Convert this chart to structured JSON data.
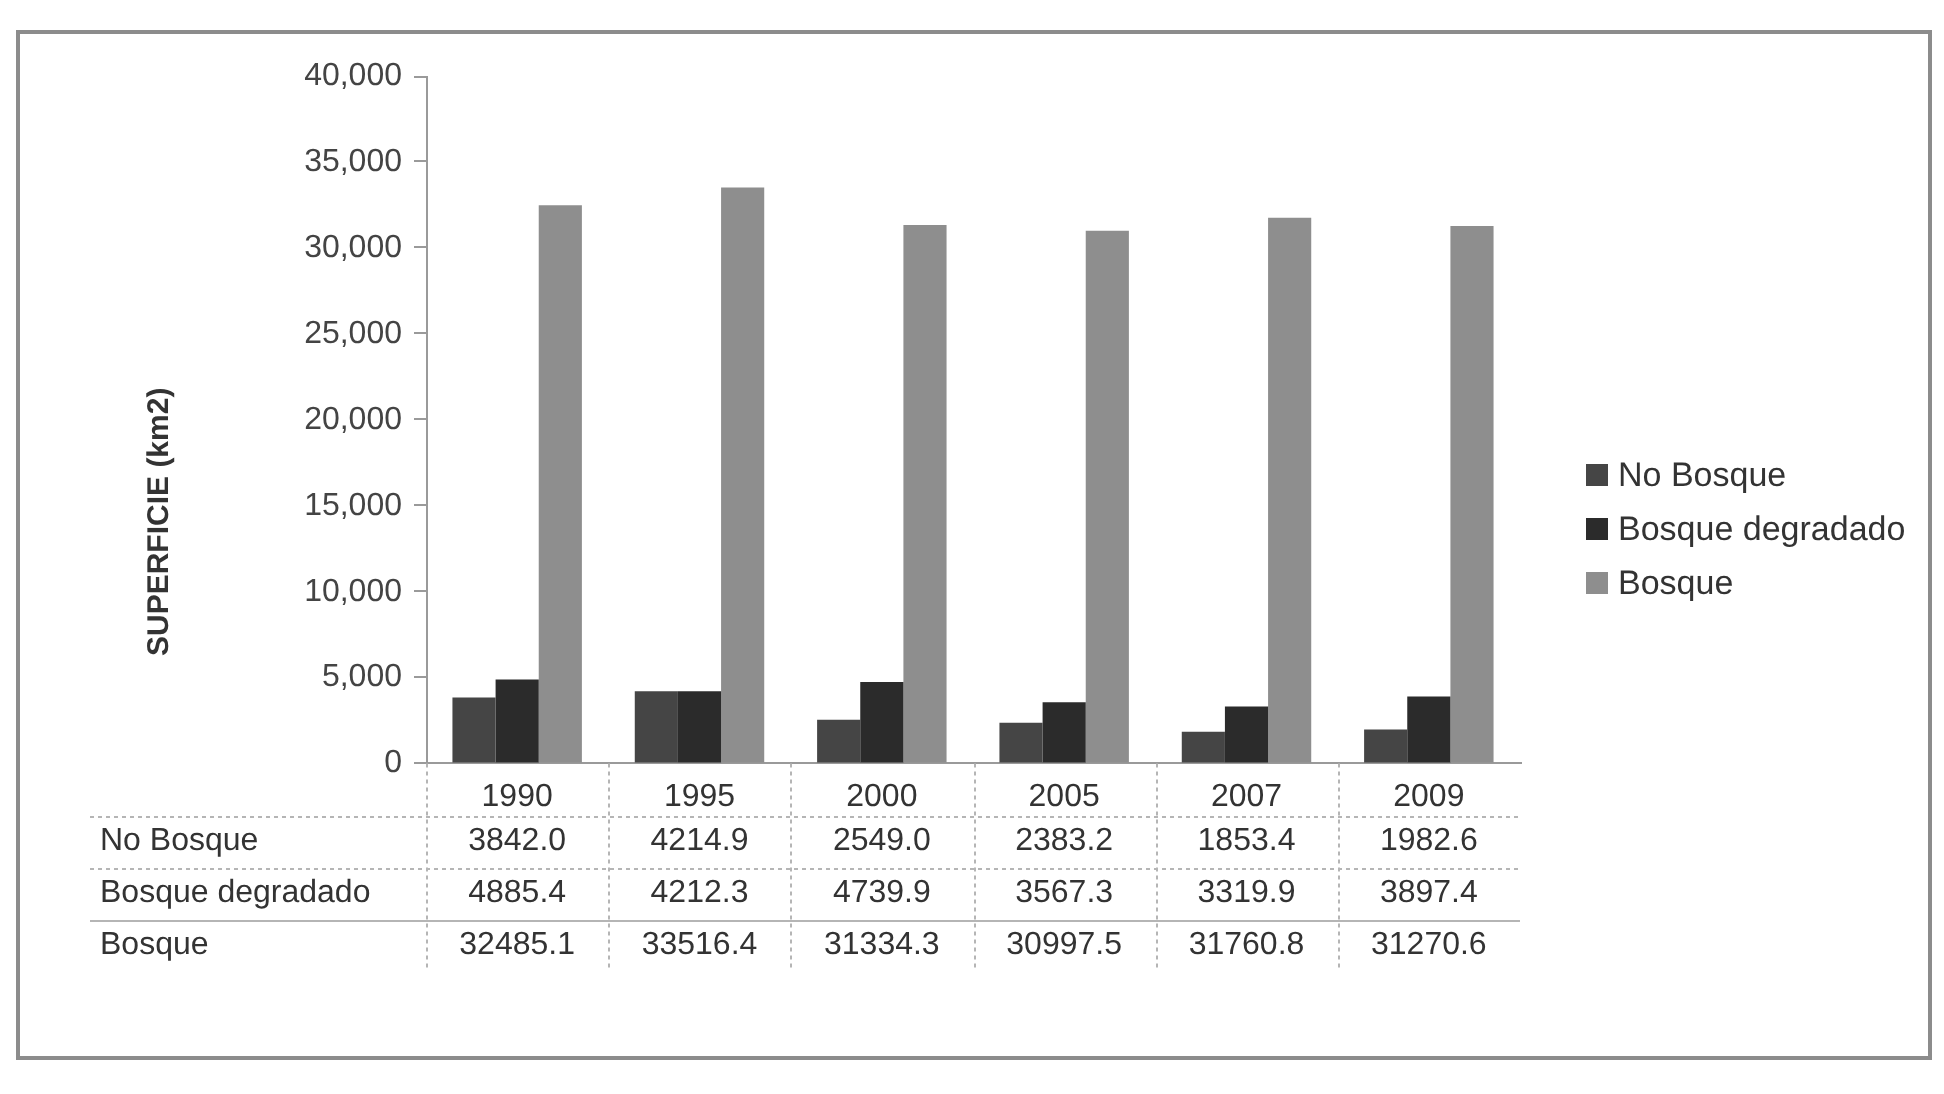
{
  "chart_data": {
    "type": "bar",
    "ylabel": "SUPERFICIE (km2)",
    "categories": [
      "1990",
      "1995",
      "2000",
      "2005",
      "2007",
      "2009"
    ],
    "series": [
      {
        "name": "No Bosque",
        "color": "#454545",
        "values": [
          3842.0,
          4214.9,
          2549.0,
          2383.2,
          1853.4,
          1982.6
        ],
        "value_labels": [
          "3842.0",
          "4214.9",
          "2549.0",
          "2383.2",
          "1853.4",
          "1982.6"
        ]
      },
      {
        "name": "Bosque degradado",
        "color": "#2b2b2b",
        "values": [
          4885.4,
          4212.3,
          4739.9,
          3567.3,
          3319.9,
          3897.4
        ],
        "value_labels": [
          "4885.4",
          "4212.3",
          "4739.9",
          "3567.3",
          "3319.9",
          "3897.4"
        ]
      },
      {
        "name": "Bosque",
        "color": "#8e8e8e",
        "values": [
          32485.1,
          33516.4,
          31334.3,
          30997.5,
          31760.8,
          31270.6
        ],
        "value_labels": [
          "32485.1",
          "33516.4",
          "31334.3",
          "30997.5",
          "31760.8",
          "31270.6"
        ]
      }
    ],
    "ylim": [
      0,
      40000
    ],
    "yticks": [
      0,
      {
        "value": 5000,
        "label": "5,000"
      },
      {
        "value": 10000,
        "label": "10,000"
      },
      {
        "value": 15000,
        "label": "15,000"
      },
      {
        "value": 20000,
        "label": "20,000"
      },
      {
        "value": 25000,
        "label": "25,000"
      },
      {
        "value": 30000,
        "label": "30,000"
      },
      {
        "value": 35000,
        "label": "35,000"
      },
      {
        "value": 40000,
        "label": "40,000"
      }
    ],
    "grid": false,
    "legend": "right"
  }
}
